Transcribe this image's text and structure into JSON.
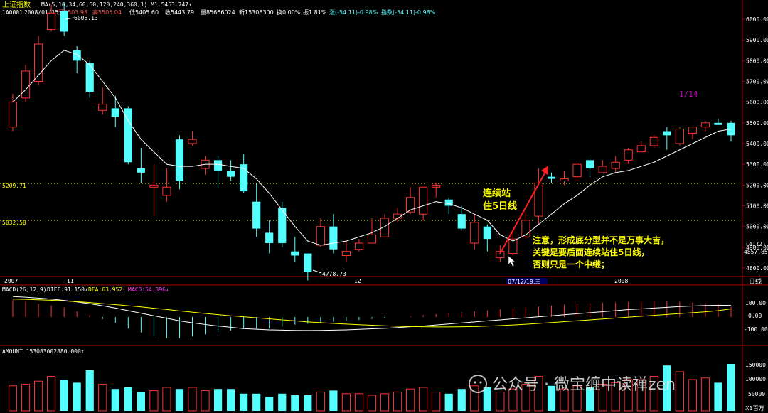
{
  "header": {
    "title": "上证指数",
    "line1": "MA(5,10,34,60,60,120,240,360,1) M1:5463.747↑",
    "code": "1A0001",
    "date": "2008/01/15",
    "open": "开5503.93",
    "high": "高5505.04",
    "low": "低5405.60",
    "close": "收5443.79",
    "volume": "量85666024",
    "new": "新15308300",
    "turnover": "换0.00%",
    "amplitude": "振1.81%",
    "change": "涨(-54.11)-0.98%",
    "index": "指数(-54.11)-0.98%"
  },
  "annotations": {
    "counter": "1/14",
    "label1_line1": "连续站",
    "label1_line2": "住5日线",
    "note_line1": "注意，形成底分型并不是万事大吉，",
    "note_line2": "关键是要后面连续站住5日线，",
    "note_line3": "否则只是一个中继；",
    "high_label": "6005.13",
    "low_label": "4778.73",
    "level1": "5209.71",
    "level2": "5032.58",
    "right_label1": "(4172)",
    "right_label2": "4857.85"
  },
  "x_axis": {
    "labels": [
      "2007",
      "11",
      "12",
      "2008"
    ],
    "cursor_date": "07/12/19,三",
    "period": "日线"
  },
  "macd_panel": {
    "title": "MACD(26,12,9)",
    "diff": "DIFF:91.150↓",
    "dea": "DEA:63.952↑",
    "macd": "MACD:54.396↓",
    "ticks": [
      "100.00",
      "0.00",
      "-100.00"
    ]
  },
  "amount_panel": {
    "title": "AMOUNT 153083002880.000↑",
    "ticks": [
      "150000",
      "100000",
      "50000"
    ],
    "unit": "X1百万"
  },
  "watermark": "公众号 · 微宝缠中读禅zen",
  "colors": {
    "up": "#ff3232",
    "down": "#54ffff",
    "ma": "#ffffff",
    "dea": "#ffff00",
    "text_up": "#ff5555",
    "text_down": "#54ffff",
    "label": "#ffff00",
    "counter": "#c000c0",
    "note": "#ffff00"
  },
  "chart_data": {
    "type": "candlestick",
    "y_ticks": [
      4800,
      4900,
      5000,
      5100,
      5200,
      5300,
      5400,
      5500,
      5600,
      5700,
      5800,
      5900,
      6000
    ],
    "ylim": [
      4730,
      6050
    ],
    "candles": [
      [
        5480,
        5600,
        5640,
        5460
      ],
      [
        5620,
        5750,
        5780,
        5600
      ],
      [
        5700,
        5880,
        5920,
        5680
      ],
      [
        5950,
        6030,
        6070,
        5940
      ],
      [
        6040,
        5940,
        6080,
        5920
      ],
      [
        5850,
        5800,
        5870,
        5740
      ],
      [
        5790,
        5650,
        5800,
        5620
      ],
      [
        5560,
        5590,
        5670,
        5540
      ],
      [
        5570,
        5530,
        5630,
        5480
      ],
      [
        5570,
        5310,
        5580,
        5300
      ],
      [
        5280,
        5260,
        5380,
        5210
      ],
      [
        5190,
        5200,
        5300,
        5050
      ],
      [
        5150,
        5190,
        5280,
        5120
      ],
      [
        5420,
        5220,
        5440,
        5180
      ],
      [
        5400,
        5420,
        5460,
        5390
      ],
      [
        5280,
        5320,
        5340,
        5250
      ],
      [
        5320,
        5270,
        5340,
        5190
      ],
      [
        5270,
        5240,
        5320,
        5220
      ],
      [
        5300,
        5170,
        5350,
        5160
      ],
      [
        5120,
        4990,
        5210,
        4950
      ],
      [
        4970,
        4920,
        5030,
        4870
      ],
      [
        5090,
        4920,
        5120,
        4900
      ],
      [
        4880,
        4860,
        4950,
        4830
      ],
      [
        4870,
        4780,
        4870,
        4740
      ],
      [
        4910,
        5000,
        5040,
        4900
      ],
      [
        5000,
        4890,
        5060,
        4870
      ],
      [
        4860,
        4880,
        4930,
        4830
      ],
      [
        4890,
        4920,
        4940,
        4880
      ],
      [
        4920,
        4960,
        5040,
        4920
      ],
      [
        4950,
        5040,
        5060,
        4950
      ],
      [
        5040,
        5060,
        5090,
        5020
      ],
      [
        5070,
        5140,
        5190,
        5060
      ],
      [
        5060,
        5190,
        5190,
        5030
      ],
      [
        5190,
        5200,
        5210,
        5140
      ],
      [
        5130,
        5100,
        5140,
        5060
      ],
      [
        5060,
        4990,
        5100,
        4980
      ],
      [
        4920,
        5020,
        5060,
        4890
      ],
      [
        5000,
        4940,
        5010,
        4880
      ],
      [
        4850,
        4880,
        4910,
        4830
      ],
      [
        4870,
        4940,
        4980,
        4860
      ],
      [
        4950,
        5030,
        5070,
        4940
      ],
      [
        5050,
        5210,
        5280,
        5010
      ],
      [
        5240,
        5230,
        5260,
        5210
      ],
      [
        5220,
        5230,
        5270,
        5200
      ],
      [
        5240,
        5300,
        5310,
        5220
      ],
      [
        5320,
        5280,
        5330,
        5240
      ],
      [
        5260,
        5290,
        5320,
        5260
      ],
      [
        5280,
        5310,
        5340,
        5260
      ],
      [
        5320,
        5370,
        5380,
        5300
      ],
      [
        5360,
        5390,
        5410,
        5360
      ],
      [
        5390,
        5430,
        5440,
        5380
      ],
      [
        5460,
        5440,
        5480,
        5370
      ],
      [
        5400,
        5470,
        5480,
        5390
      ],
      [
        5450,
        5480,
        5480,
        5420
      ],
      [
        5480,
        5500,
        5510,
        5460
      ],
      [
        5500,
        5490,
        5520,
        5490
      ],
      [
        5500,
        5440,
        5510,
        5410
      ]
    ],
    "ma5": [
      5600,
      5660,
      5730,
      5800,
      5850,
      5830,
      5780,
      5700,
      5620,
      5510,
      5420,
      5360,
      5300,
      5290,
      5290,
      5300,
      5300,
      5290,
      5280,
      5230,
      5160,
      5080,
      5000,
      4930,
      4910,
      4920,
      4930,
      4950,
      4970,
      5000,
      5040,
      5080,
      5100,
      5120,
      5110,
      5090,
      5060,
      5030,
      4960,
      4930,
      4960,
      5010,
      5060,
      5110,
      5150,
      5200,
      5240,
      5260,
      5270,
      5290,
      5310,
      5340,
      5370,
      5400,
      5430,
      5460,
      5470
    ],
    "macd_hist": [
      90,
      80,
      70,
      60,
      50,
      30,
      10,
      -10,
      -30,
      -60,
      -80,
      -100,
      -110,
      -110,
      -100,
      -90,
      -80,
      -70,
      -60,
      -60,
      -60,
      -50,
      -40,
      -35,
      -30,
      -25,
      -20,
      -15,
      -10,
      -5,
      0,
      5,
      10,
      15,
      20,
      25,
      30,
      35,
      40,
      45,
      50,
      55,
      60,
      65,
      70,
      72,
      74,
      76,
      78,
      80,
      82,
      82,
      80,
      76,
      72,
      66,
      54
    ],
    "diff": [
      160,
      155,
      148,
      140,
      130,
      118,
      104,
      88,
      70,
      50,
      30,
      10,
      -10,
      -30,
      -45,
      -58,
      -70,
      -80,
      -90,
      -95,
      -100,
      -102,
      -104,
      -105,
      -104,
      -102,
      -100,
      -96,
      -92,
      -88,
      -82,
      -76,
      -70,
      -62,
      -54,
      -46,
      -38,
      -30,
      -22,
      -14,
      -6,
      2,
      10,
      18,
      26,
      34,
      42,
      50,
      58,
      64,
      70,
      76,
      82,
      86,
      90,
      92,
      91
    ],
    "dea": [
      140,
      138,
      135,
      131,
      126,
      120,
      113,
      105,
      97,
      88,
      79,
      69,
      59,
      48,
      38,
      28,
      19,
      10,
      2,
      -6,
      -14,
      -22,
      -30,
      -38,
      -44,
      -50,
      -55,
      -60,
      -64,
      -68,
      -72,
      -74,
      -76,
      -77,
      -77,
      -76,
      -74,
      -71,
      -67,
      -62,
      -56,
      -50,
      -43,
      -36,
      -29,
      -22,
      -15,
      -8,
      -1,
      6,
      13,
      20,
      27,
      34,
      41,
      50,
      64
    ],
    "amount": [
      80,
      85,
      95,
      110,
      100,
      90,
      130,
      85,
      70,
      75,
      60,
      65,
      75,
      70,
      75,
      65,
      70,
      70,
      55,
      55,
      45,
      55,
      50,
      50,
      60,
      65,
      55,
      55,
      50,
      55,
      60,
      70,
      75,
      60,
      55,
      70,
      80,
      75,
      60,
      70,
      85,
      110,
      80,
      70,
      80,
      75,
      85,
      90,
      100,
      100,
      110,
      145,
      125,
      100,
      105,
      90,
      150
    ],
    "amount_ylim": [
      0,
      200000
    ]
  }
}
